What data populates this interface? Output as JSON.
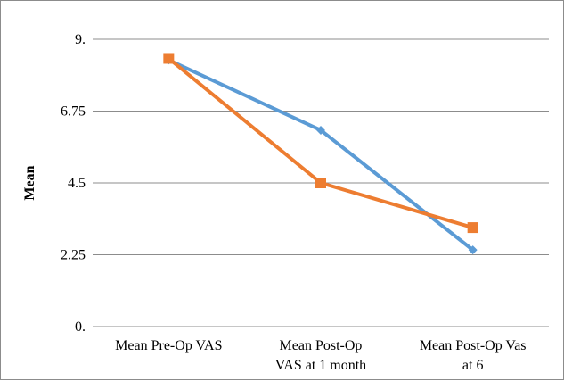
{
  "chart_data": {
    "type": "line",
    "title": "",
    "xlabel": "",
    "ylabel": "Mean",
    "ylim": [
      0,
      9
    ],
    "yticks": [
      "0.",
      "2.25",
      "4.5",
      "6.75",
      "9."
    ],
    "yticks_values": [
      0,
      2.25,
      4.5,
      6.75,
      9
    ],
    "grid": true,
    "legend": "none",
    "categories": [
      [
        "Mean Pre-Op VAS"
      ],
      [
        "Mean Post-Op",
        "VAS at 1 month"
      ],
      [
        "Mean Post-Op Vas",
        "at 6"
      ]
    ],
    "series": [
      {
        "values": [
          8.35,
          6.15,
          2.4
        ],
        "color": "#5b9bd5",
        "marker": "diamond"
      },
      {
        "values": [
          8.4,
          4.5,
          3.1
        ],
        "color": "#ed7d31",
        "marker": "square"
      }
    ]
  }
}
